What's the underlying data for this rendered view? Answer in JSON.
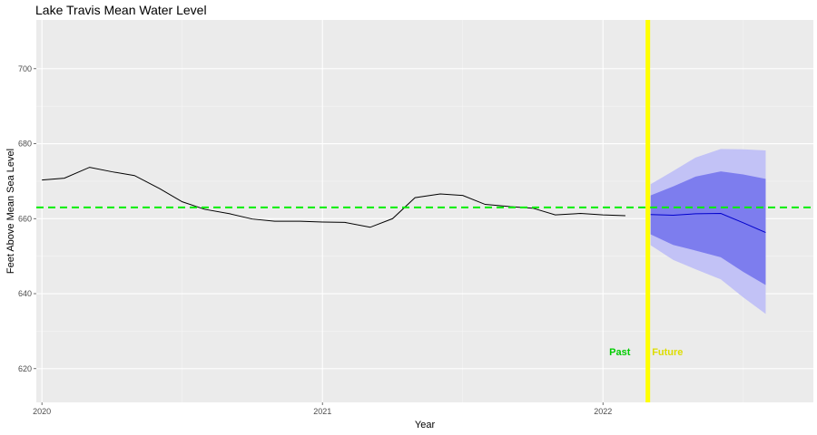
{
  "chart_data": {
    "type": "line",
    "title": "Lake Travis Mean Water Level",
    "xlabel": "Year",
    "ylabel": "Feet Above Mean Sea Level",
    "xlim": [
      2019.98,
      2022.75
    ],
    "ylim": [
      611,
      713
    ],
    "x_ticks": [
      2020,
      2021,
      2022
    ],
    "x_tick_labels": [
      "2020",
      "2021",
      "2022"
    ],
    "y_ticks": [
      620,
      640,
      660,
      680,
      700
    ],
    "y_tick_labels": [
      "620",
      "640",
      "660",
      "680",
      "700"
    ],
    "grid": true,
    "background": "#ebebeb",
    "reference_line": {
      "y": 663,
      "color": "#00ee00",
      "style": "dashed"
    },
    "divider": {
      "x": 2022.16,
      "color": "#ffff00"
    },
    "annotations": [
      {
        "text": "Past",
        "x": 2022.06,
        "y": 624.5,
        "color": "#00cc00"
      },
      {
        "text": "Future",
        "x": 2022.23,
        "y": 624.5,
        "color": "#dddd00"
      }
    ],
    "series": [
      {
        "color": "#000000",
        "x": [
          2020.0,
          2020.08,
          2020.17,
          2020.25,
          2020.33,
          2020.42,
          2020.5,
          2020.58,
          2020.67,
          2020.75,
          2020.83,
          2020.92,
          2021.0,
          2021.08,
          2021.17,
          2021.25,
          2021.33,
          2021.42,
          2021.5,
          2021.58,
          2021.67,
          2021.75,
          2021.83,
          2021.92,
          2022.0,
          2022.08
        ],
        "values": [
          670.3,
          670.8,
          673.7,
          672.5,
          671.5,
          668.0,
          664.5,
          662.5,
          661.3,
          659.9,
          659.3,
          659.3,
          659.1,
          659.0,
          657.7,
          660.0,
          665.6,
          666.6,
          666.2,
          663.8,
          663.2,
          662.8,
          661.0,
          661.4,
          661.0,
          660.8
        ]
      }
    ],
    "forecast": {
      "color": "#0000cc",
      "x": [
        2022.17,
        2022.25,
        2022.33,
        2022.42,
        2022.5,
        2022.58
      ],
      "mean": [
        661.1,
        660.9,
        661.3,
        661.4,
        658.9,
        656.3
      ],
      "lower80": [
        655.8,
        653.0,
        651.5,
        649.7,
        645.8,
        642.3
      ],
      "upper80": [
        666.2,
        668.6,
        671.2,
        672.6,
        671.8,
        670.6
      ],
      "lower95": [
        652.9,
        649.0,
        646.5,
        643.8,
        639.0,
        634.6
      ],
      "upper95": [
        669.2,
        672.7,
        676.3,
        678.6,
        678.5,
        678.2
      ],
      "band80_color": "#7d7dee",
      "band95_color": "#c2c2f6"
    }
  }
}
